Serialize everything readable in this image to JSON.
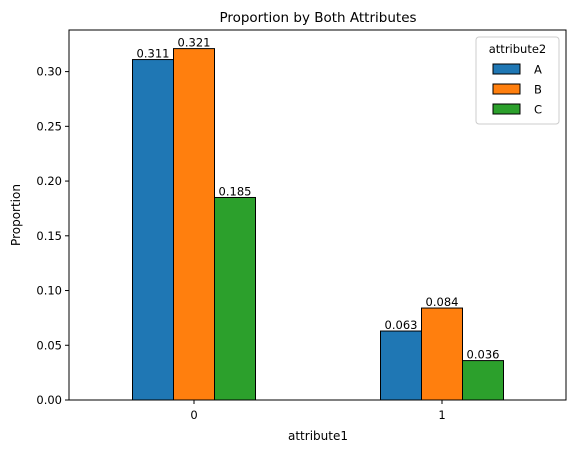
{
  "chart_data": {
    "type": "bar",
    "title": "Proportion by Both Attributes",
    "xlabel": "attribute1",
    "ylabel": "Proportion",
    "categories": [
      "0",
      "1"
    ],
    "ylim": [
      0,
      0.338
    ],
    "yticks": [
      "0.00",
      "0.05",
      "0.10",
      "0.15",
      "0.20",
      "0.25",
      "0.30"
    ],
    "grid": false,
    "legend": {
      "title": "attribute2",
      "placement": "top-right"
    },
    "series": [
      {
        "name": "A",
        "color": "#1f77b4",
        "values": [
          0.311,
          0.063
        ],
        "labels": [
          "0.311",
          "0.063"
        ]
      },
      {
        "name": "B",
        "color": "#ff7f0e",
        "values": [
          0.321,
          0.084
        ],
        "labels": [
          "0.321",
          "0.084"
        ]
      },
      {
        "name": "C",
        "color": "#2ca02c",
        "values": [
          0.185,
          0.036
        ],
        "labels": [
          "0.185",
          "0.036"
        ]
      }
    ]
  }
}
